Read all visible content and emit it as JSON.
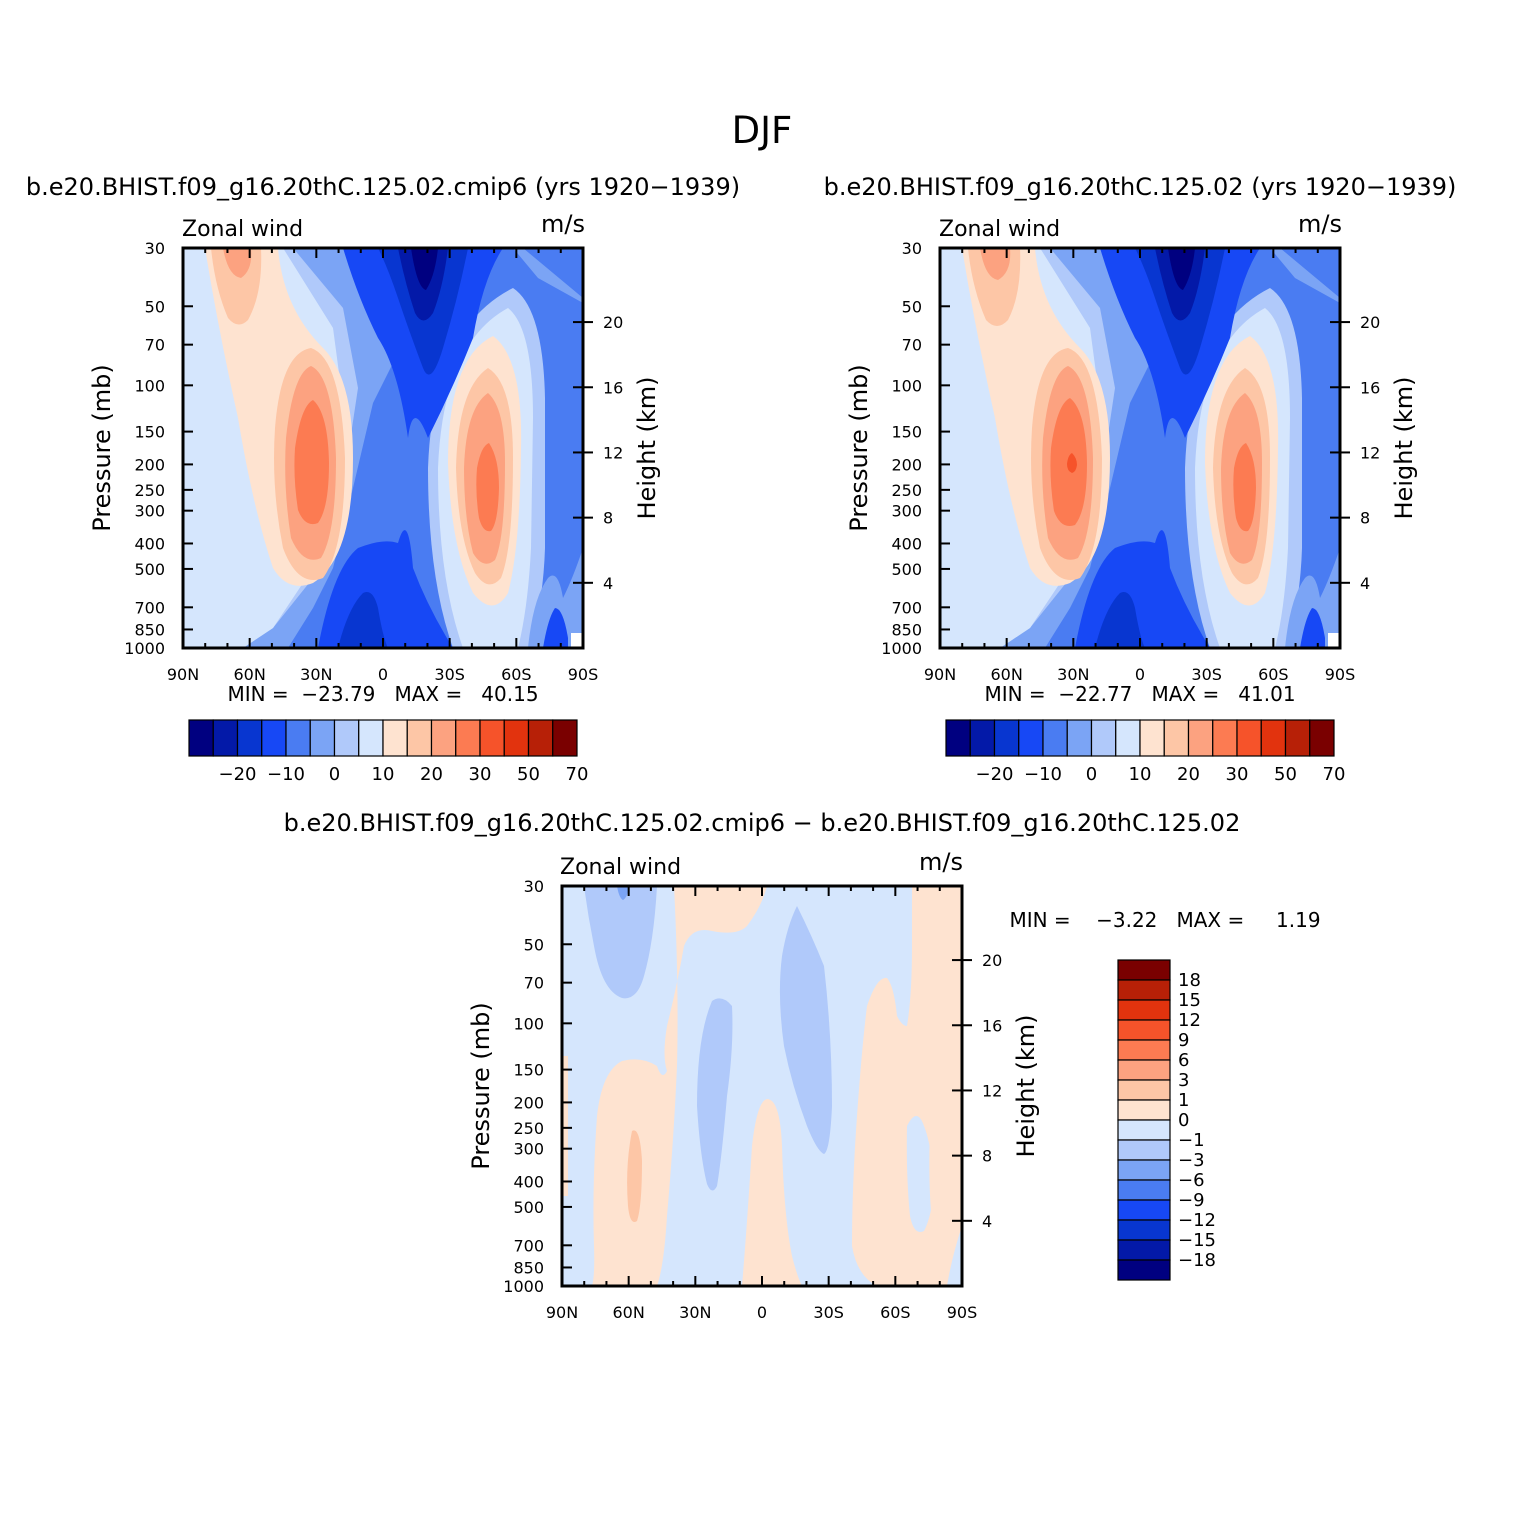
{
  "season": "DJF",
  "panels": [
    {
      "title": "b.e20.BHIST.f09_g16.20thC.125.02.cmip6 (yrs 1920−1939)",
      "left_label": "Zonal wind",
      "right_label": "m/s",
      "ylabel": "Pressure (mb)",
      "y2label": "Height (km)",
      "minmax": "MIN =  −23.79   MAX =   40.15"
    },
    {
      "title": "b.e20.BHIST.f09_g16.20thC.125.02 (yrs 1920−1939)",
      "left_label": "Zonal wind",
      "right_label": "m/s",
      "ylabel": "Pressure (mb)",
      "y2label": "Height (km)",
      "minmax": "MIN =  −22.77   MAX =   41.01"
    },
    {
      "title": "b.e20.BHIST.f09_g16.20thC.125.02.cmip6 − b.e20.BHIST.f09_g16.20thC.125.02",
      "left_label": "Zonal wind",
      "right_label": "m/s",
      "ylabel": "Pressure (mb)",
      "y2label": "Height (km)",
      "minmax": "MIN =    −3.22   MAX =     1.19"
    }
  ],
  "axes": {
    "x_ticks": [
      "90N",
      "60N",
      "30N",
      "0",
      "30S",
      "60S",
      "90S"
    ],
    "pressure_ticks": [
      "30",
      "50",
      "70",
      "100",
      "150",
      "200",
      "250",
      "300",
      "400",
      "500",
      "700",
      "850",
      "1000"
    ],
    "height_ticks": [
      "20",
      "16",
      "12",
      "8",
      "4"
    ]
  },
  "colorbar_main": {
    "colors": [
      "#000080",
      "#0319a8",
      "#0836d0",
      "#1748f5",
      "#4a7cf2",
      "#7ba4f5",
      "#b0c9fa",
      "#d5e6fd",
      "#fee3d0",
      "#fdc6a6",
      "#fca280",
      "#fc7b52",
      "#f6532a",
      "#e2330e",
      "#b72007",
      "#7a0000"
    ],
    "labels": [
      "−20",
      "−10",
      "0",
      "10",
      "20",
      "30",
      "50",
      "70"
    ]
  },
  "colorbar_diff": {
    "colors": [
      "#000080",
      "#0319a8",
      "#0836d0",
      "#1748f5",
      "#4a7cf2",
      "#7ba4f5",
      "#b0c9fa",
      "#d5e6fd",
      "#fee3d0",
      "#fdc6a6",
      "#fca280",
      "#fc7b52",
      "#f6532a",
      "#e2330e",
      "#b72007",
      "#7a0000"
    ],
    "labels": [
      "18",
      "15",
      "12",
      "9",
      "6",
      "3",
      "1",
      "0",
      "−1",
      "−3",
      "−6",
      "−9",
      "−12",
      "−15",
      "−18"
    ]
  },
  "chart_data": [
    {
      "type": "heatmap",
      "variable": "Zonal wind",
      "units": "m/s",
      "x": [
        "90N",
        "60N",
        "30N",
        "0",
        "30S",
        "60S",
        "90S"
      ],
      "y_pressure_mb": [
        30,
        50,
        70,
        100,
        150,
        200,
        250,
        300,
        400,
        500,
        700,
        850,
        1000
      ],
      "min": -23.79,
      "max": 40.15,
      "features": [
        {
          "lat": "30N",
          "pressure_mb": 200,
          "value": 40
        },
        {
          "lat": "45S",
          "pressure_mb": 250,
          "value": 35
        },
        {
          "lat": "20S",
          "pressure_mb": 30,
          "value": -23
        },
        {
          "lat": "65N",
          "pressure_mb": 30,
          "value": 20
        }
      ]
    },
    {
      "type": "heatmap",
      "variable": "Zonal wind",
      "units": "m/s",
      "x": [
        "90N",
        "60N",
        "30N",
        "0",
        "30S",
        "60S",
        "90S"
      ],
      "y_pressure_mb": [
        30,
        50,
        70,
        100,
        150,
        200,
        250,
        300,
        400,
        500,
        700,
        850,
        1000
      ],
      "min": -22.77,
      "max": 41.01,
      "features": [
        {
          "lat": "30N",
          "pressure_mb": 200,
          "value": 41
        },
        {
          "lat": "45S",
          "pressure_mb": 250,
          "value": 35
        },
        {
          "lat": "20S",
          "pressure_mb": 30,
          "value": -22
        },
        {
          "lat": "65N",
          "pressure_mb": 30,
          "value": 20
        }
      ]
    },
    {
      "type": "heatmap",
      "variable": "Zonal wind",
      "units": "m/s",
      "x": [
        "90N",
        "60N",
        "30N",
        "0",
        "30S",
        "60S",
        "90S"
      ],
      "y_pressure_mb": [
        30,
        50,
        70,
        100,
        150,
        200,
        250,
        300,
        400,
        500,
        700,
        850,
        1000
      ],
      "min": -3.22,
      "max": 1.19
    }
  ]
}
